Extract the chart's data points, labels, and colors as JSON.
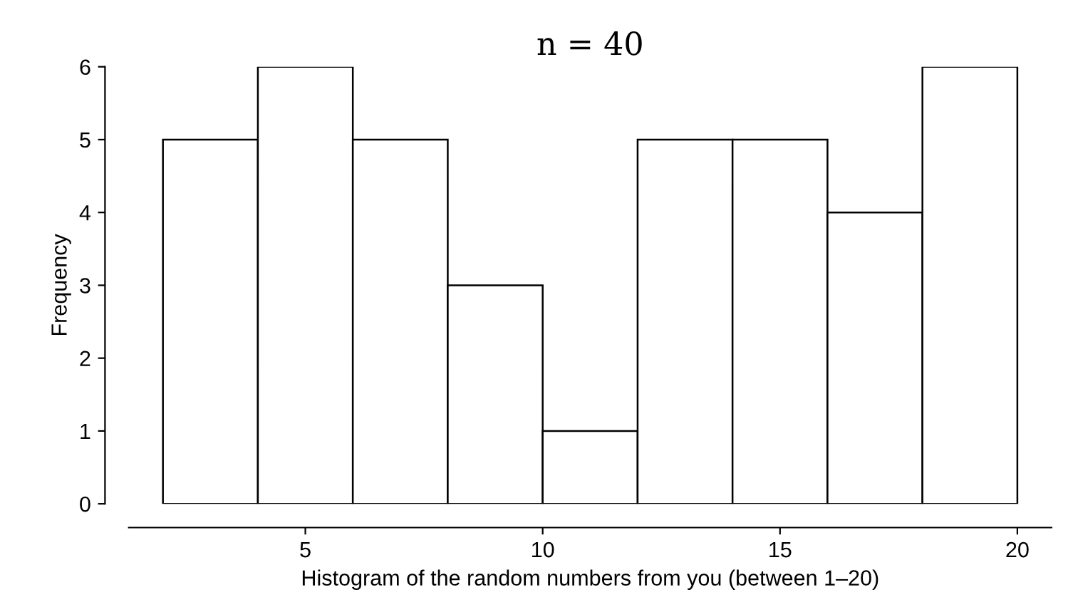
{
  "chart_data": {
    "type": "histogram",
    "title": "n = 40",
    "xlabel": "Histogram of the random numbers from you (between 1–20)",
    "ylabel": "Frequency",
    "bins": [
      2,
      4,
      6,
      8,
      10,
      12,
      14,
      16,
      18,
      20
    ],
    "values": [
      5,
      6,
      5,
      3,
      1,
      5,
      5,
      4,
      6
    ],
    "color": "#ffffff",
    "xlim": [
      1.28,
      20.72
    ],
    "xticks": [
      5,
      10,
      15,
      20
    ],
    "ylim": [
      0,
      6
    ],
    "yticks": [
      0,
      1,
      2,
      3,
      4,
      5,
      6
    ],
    "grid": false
  }
}
